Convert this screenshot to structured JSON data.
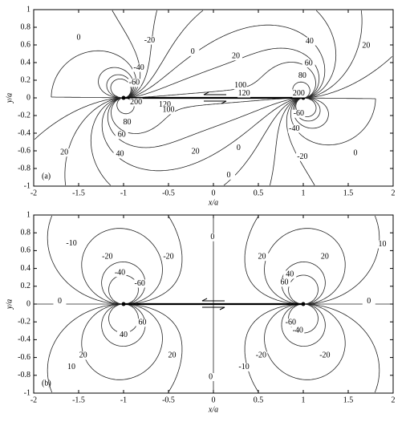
{
  "chart_data": [
    {
      "type": "contour",
      "panel_label": "(a)",
      "xlabel": "x/a",
      "ylabel": "y/a",
      "xlim": [
        -2,
        2
      ],
      "ylim": [
        -1,
        1
      ],
      "xticks": [
        -2,
        -1.5,
        -1,
        -0.5,
        0,
        0.5,
        1,
        1.5,
        2
      ],
      "yticks": [
        -1,
        -0.8,
        -0.6,
        -0.4,
        -0.2,
        0,
        0.2,
        0.4,
        0.6,
        0.8,
        1
      ],
      "levels": [
        -60,
        -40,
        -20,
        0,
        20,
        40,
        60,
        80,
        100,
        120,
        200
      ],
      "contour_labels": [
        0,
        -20,
        0,
        20,
        40,
        20,
        -40,
        -60,
        60,
        80,
        100,
        120,
        200,
        200,
        120,
        100,
        80,
        60,
        40,
        20,
        20,
        0,
        0,
        -40,
        -60,
        -20,
        0
      ]
    },
    {
      "type": "contour",
      "panel_label": "(b)",
      "xlabel": "x/a",
      "ylabel": "y/a",
      "xlim": [
        -2,
        2
      ],
      "ylim": [
        -1,
        1
      ],
      "xticks": [
        -2,
        -1.5,
        -1,
        -0.5,
        0,
        0.5,
        1,
        1.5,
        2
      ],
      "yticks": [
        -1,
        -0.8,
        -0.6,
        -0.4,
        -0.2,
        0,
        0.2,
        0.4,
        0.6,
        0.8,
        1
      ],
      "levels": [
        -60,
        -40,
        -20,
        -10,
        0,
        10,
        20,
        40,
        60
      ],
      "contour_labels": [
        0,
        -10,
        10,
        -20,
        -20,
        20,
        20,
        -40,
        -60,
        40,
        60,
        0,
        0,
        40,
        60,
        -40,
        -60,
        20,
        20,
        -20,
        -20,
        10,
        -10,
        0
      ]
    }
  ]
}
